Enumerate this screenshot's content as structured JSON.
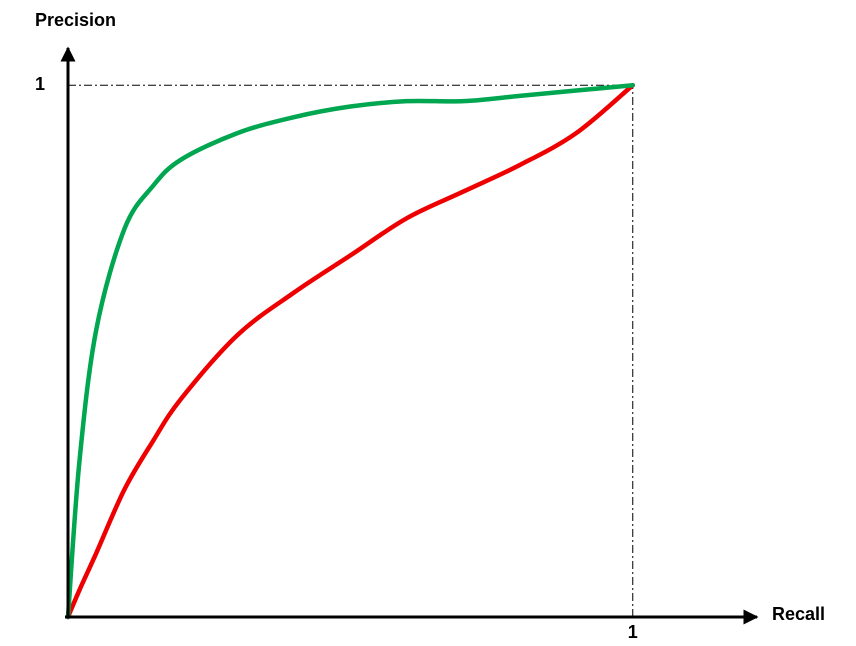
{
  "chart_data": {
    "type": "line",
    "x_label": "Recall",
    "y_label": "Precision",
    "x": [
      0,
      0.02,
      0.05,
      0.1,
      0.15,
      0.2,
      0.3,
      0.4,
      0.5,
      0.6,
      0.7,
      0.8,
      0.9,
      1
    ],
    "series": [
      {
        "color": "#ee0000",
        "values": [
          0,
          0.05,
          0.12,
          0.24,
          0.33,
          0.41,
          0.53,
          0.61,
          0.68,
          0.75,
          0.8,
          0.85,
          0.91,
          1
        ]
      },
      {
        "color": "#00a650",
        "values": [
          0,
          0.29,
          0.54,
          0.73,
          0.81,
          0.86,
          0.91,
          0.94,
          0.96,
          0.97,
          0.97,
          0.98,
          0.99,
          1
        ]
      }
    ],
    "xlim": [
      0,
      1.22
    ],
    "ylim": [
      0,
      1.07
    ],
    "xticks": [
      1
    ],
    "yticks": [
      1
    ]
  }
}
